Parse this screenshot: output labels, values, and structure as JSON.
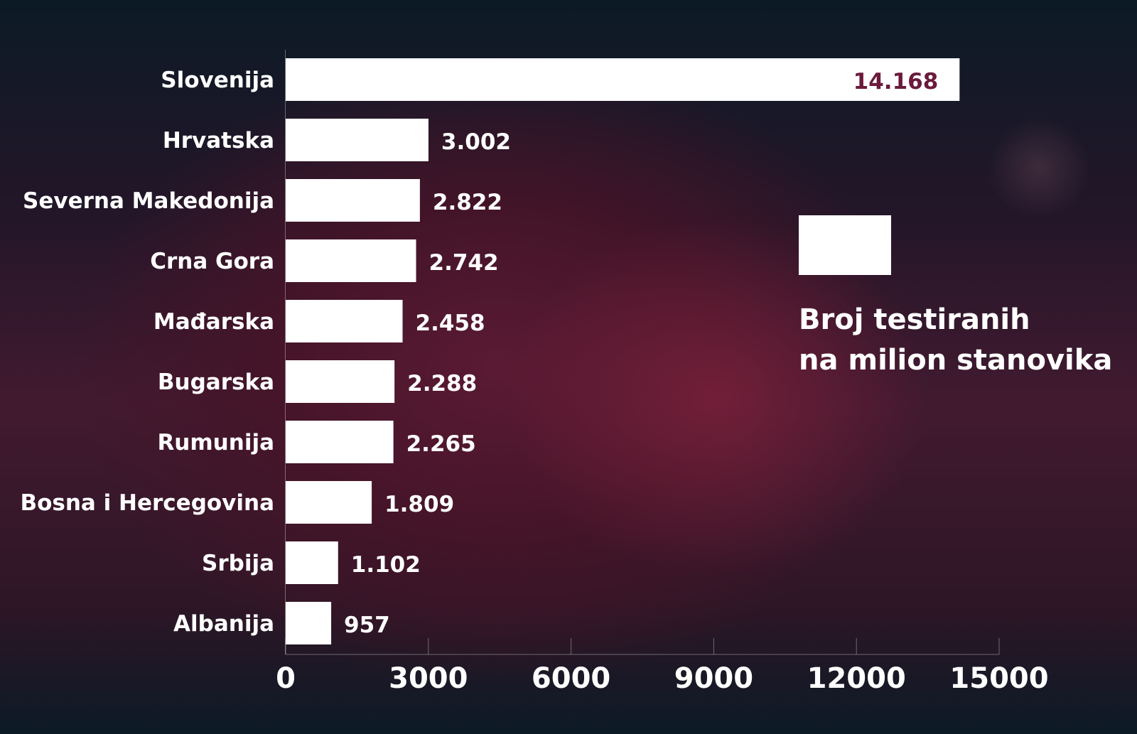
{
  "chart_data": {
    "type": "bar",
    "orientation": "horizontal",
    "categories": [
      "Slovenija",
      "Hrvatska",
      "Severna Makedonija",
      "Crna Gora",
      "Mađarska",
      "Bugarska",
      "Rumunija",
      "Bosna i Hercegovina",
      "Srbija",
      "Albanija"
    ],
    "values": [
      14168,
      3002,
      2822,
      2742,
      2458,
      2288,
      2265,
      1809,
      1102,
      957
    ],
    "data_labels": [
      "14.168",
      "3.002",
      "2.822",
      "2.742",
      "2.458",
      "2.288",
      "2.265",
      "1.809",
      "1.102",
      "957"
    ],
    "xlim": [
      0,
      15000
    ],
    "xticks": [
      "0",
      "3000",
      "6000",
      "9000",
      "12000",
      "15000"
    ],
    "legend": {
      "line1": "Broj testiranih",
      "line2": "na milion stanovika",
      "swatch_color": "#ffffff",
      "placement": "right"
    },
    "bar_color": "#ffffff",
    "inside_label_color": "#6b1a3b",
    "grid": false
  }
}
